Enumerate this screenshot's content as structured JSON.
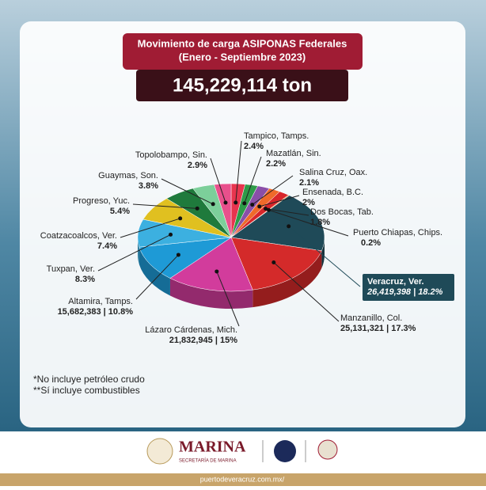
{
  "header": {
    "title_line1": "Movimiento de carga ASIPONAS Federales",
    "title_line2": "(Enero - Septiembre 2023)",
    "total": "145,229,114 ton"
  },
  "chart_data": {
    "type": "pie",
    "categories": [
      "Tampico, Tamps.",
      "Mazatlán, Sin.",
      "Salina Cruz, Oax.",
      "Ensenada, B.C.",
      "Dos Bocas, Tab.",
      "Puerto Chiapas, Chips.",
      "Veracruz, Ver.",
      "Manzanillo, Col.",
      "Lázaro Cárdenas, Mich.",
      "Altamira, Tamps.",
      "Tuxpan, Ver.",
      "Coatzacoalcos, Ver.",
      "Progreso, Yuc.",
      "Guaymas, Son.",
      "Topolobampo, Sin."
    ],
    "values": [
      2.4,
      2.2,
      2.1,
      2,
      1.8,
      0.2,
      18.2,
      17.3,
      15,
      10.8,
      8.3,
      7.4,
      5.4,
      3.8,
      2.9
    ],
    "value_labels": [
      "2.4%",
      "2.2%",
      "2.1%",
      "2%",
      "1.8%",
      "0.2%",
      "26,419,398 | 18.2%",
      "25,131,321 | 17.3%",
      "21,832,945 | 15%",
      "15,682,383 | 10.8%",
      "8.3%",
      "7.4%",
      "5.4%",
      "3.8%",
      "2.9%"
    ],
    "colors": [
      "#e8344e",
      "#2e9a48",
      "#8a4fa8",
      "#ef6a2a",
      "#d8262a",
      "#f08a30",
      "#1f4a58",
      "#d42a2a",
      "#d23c9c",
      "#1e9ad6",
      "#3cb0e0",
      "#e0c020",
      "#1f7a3c",
      "#7ccf9a",
      "#e8508c"
    ]
  },
  "notes": [
    "*No incluye petróleo crudo",
    "**Sí incluye combustibles"
  ],
  "footer": {
    "brand": "MARINA",
    "subtitle": "SECRETARÍA DE MARINA",
    "url": "puertodeveracruz.com.mx/"
  }
}
